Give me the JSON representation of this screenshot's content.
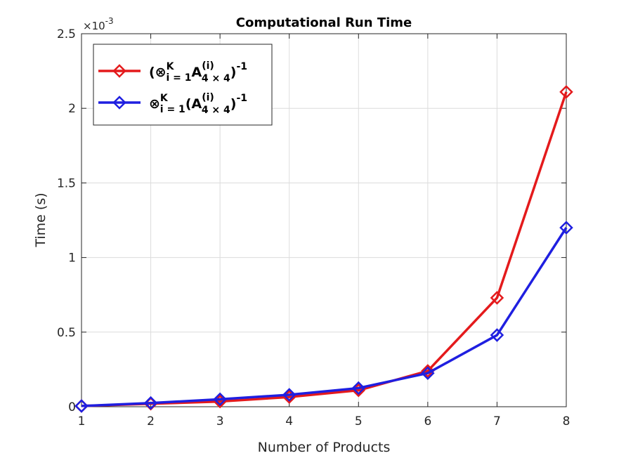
{
  "chart_data": {
    "type": "line",
    "title": "Computational Run Time",
    "xlabel": "Number of Products",
    "ylabel": "Time (s)",
    "y_exponent_label": "×10",
    "y_exponent_power": "-3",
    "x": [
      1,
      2,
      3,
      4,
      5,
      6,
      7,
      8
    ],
    "xlim": [
      1,
      8
    ],
    "ylim": [
      0,
      0.0025
    ],
    "x_ticks": [
      "1",
      "2",
      "3",
      "4",
      "5",
      "6",
      "7",
      "8"
    ],
    "y_ticks": [
      {
        "value": 0,
        "label": "0"
      },
      {
        "value": 0.0005,
        "label": "0.5"
      },
      {
        "value": 0.001,
        "label": "1"
      },
      {
        "value": 0.0015,
        "label": "1.5"
      },
      {
        "value": 0.002,
        "label": "2"
      },
      {
        "value": 0.0025,
        "label": "2.5"
      }
    ],
    "grid": true,
    "legend_position": "top-left",
    "series": [
      {
        "legend": {
          "prefix": "(⊗",
          "sub": "i = 1",
          "sup": "K",
          "mid": "A",
          "mid_sub": "4 × 4",
          "mid_sup": "(i)",
          "suffix": ")",
          "suffix_sup": "-1"
        },
        "color": "#e41a1c",
        "marker": "diamond",
        "values": [
          5e-06,
          2e-05,
          3.5e-05,
          6.5e-05,
          0.00011,
          0.00024,
          0.00073,
          0.00211
        ]
      },
      {
        "legend": {
          "prefix": "⊗",
          "sub": "i = 1",
          "sup": "K",
          "mid": "(A",
          "mid_sub": "4 × 4",
          "mid_sup": "(i)",
          "suffix": ")",
          "suffix_sup": "-1"
        },
        "color": "#1f1fe0",
        "marker": "diamond",
        "values": [
          5e-06,
          2.5e-05,
          5e-05,
          8e-05,
          0.000125,
          0.000225,
          0.00048,
          0.0012
        ]
      }
    ]
  }
}
